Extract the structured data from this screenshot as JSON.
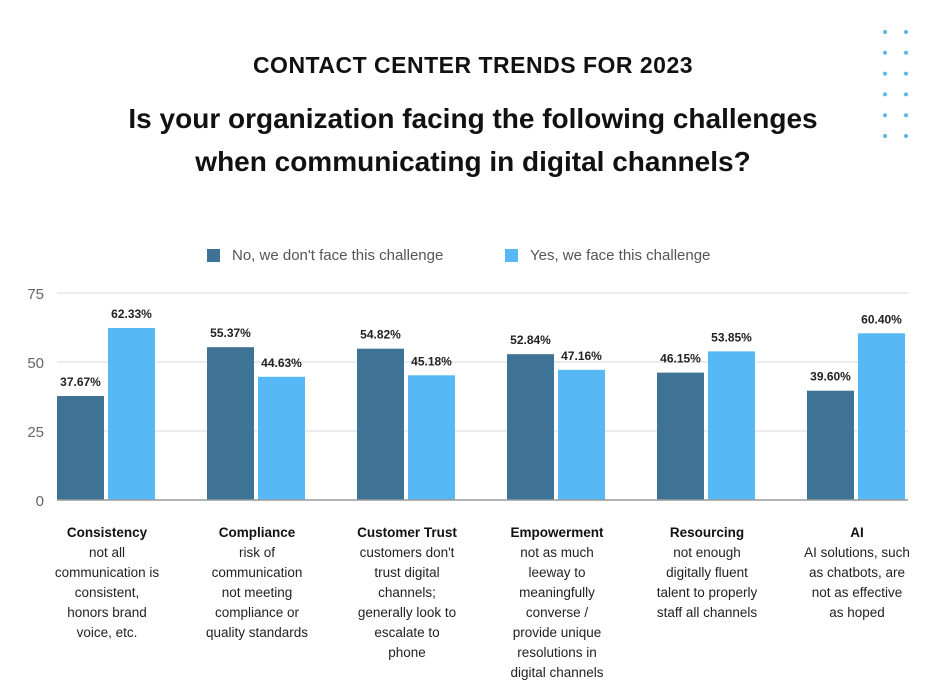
{
  "header": {
    "kicker": "CONTACT CENTER TRENDS FOR 2023",
    "question_line1": "Is your organization facing the following challenges",
    "question_line2": "when communicating in digital channels?"
  },
  "chart_data": {
    "type": "bar",
    "title": "Is your organization facing the following challenges when communicating in digital channels?",
    "categories": [
      "Consistency",
      "Compliance",
      "Customer Trust",
      "Empowerment",
      "Resourcing",
      "AI"
    ],
    "descriptions": [
      "not all communication is consistent, honors brand voice, etc.",
      "risk of communication not meeting compliance or quality standards",
      "customers don't trust digital channels; generally look to escalate to phone",
      "not as much leeway to meaningfully converse / provide unique resolutions in digital channels",
      "not enough digitally fluent talent to properly staff all channels",
      "AI solutions, such as chatbots, are not as effective as hoped"
    ],
    "series": [
      {
        "name": "No, we don't face this challenge",
        "color": "#3f7396",
        "values": [
          37.67,
          55.37,
          54.82,
          52.84,
          46.15,
          39.6
        ],
        "labels": [
          "37.67%",
          "55.37%",
          "54.82%",
          "52.84%",
          "46.15%",
          "39.60%"
        ]
      },
      {
        "name": "Yes, we face this challenge",
        "color": "#56b8f5",
        "values": [
          62.33,
          44.63,
          45.18,
          47.16,
          53.85,
          60.4
        ],
        "labels": [
          "62.33%",
          "44.63%",
          "45.18%",
          "47.16%",
          "53.85%",
          "60.40%"
        ]
      }
    ],
    "ylim": [
      0,
      75
    ],
    "yticks": [
      "0",
      "25",
      "50",
      "75"
    ],
    "grid": true,
    "legend": "top-center",
    "xlabel": "",
    "ylabel": ""
  }
}
